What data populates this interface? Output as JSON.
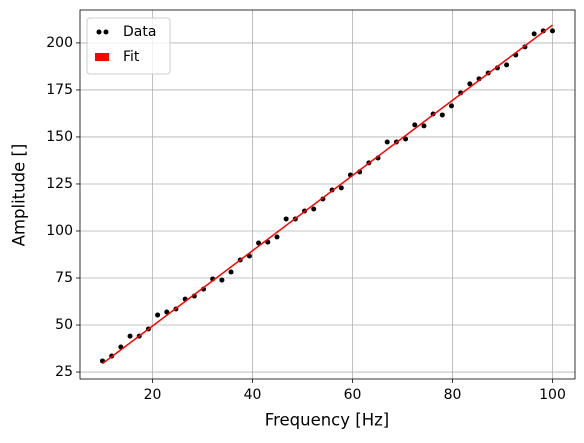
{
  "chart_data": {
    "type": "scatter",
    "xlabel": "Frequency [Hz]",
    "ylabel": "Amplitude []",
    "xlim": [
      5.5,
      104.5
    ],
    "ylim": [
      21.3,
      217.5
    ],
    "xticks": [
      20,
      40,
      60,
      80,
      100
    ],
    "yticks": [
      25,
      50,
      75,
      100,
      125,
      150,
      175,
      200
    ],
    "grid": true,
    "legend": "upper left",
    "series": [
      {
        "name": "Data",
        "type": "scatter",
        "color": "#000000",
        "x": [
          10,
          11.84,
          13.67,
          15.51,
          17.35,
          19.18,
          21.02,
          22.86,
          24.69,
          26.53,
          28.37,
          30.2,
          32.04,
          33.88,
          35.71,
          37.55,
          39.39,
          41.22,
          43.06,
          44.9,
          46.73,
          48.57,
          50.41,
          52.24,
          54.08,
          55.92,
          57.76,
          59.59,
          61.43,
          63.27,
          65.1,
          66.94,
          68.78,
          70.61,
          72.45,
          74.29,
          76.12,
          77.96,
          79.8,
          81.63,
          83.47,
          85.31,
          87.14,
          88.98,
          90.82,
          92.65,
          94.49,
          96.33,
          98.16,
          100
        ],
        "values": [
          30.9,
          33.5,
          38.3,
          44.1,
          44.1,
          47.9,
          55.3,
          56.9,
          58.5,
          63.8,
          65.4,
          69.1,
          74.5,
          73.9,
          78.2,
          84.6,
          86.7,
          93.6,
          94.1,
          96.8,
          106.4,
          106.4,
          110.6,
          111.7,
          117.0,
          121.8,
          122.9,
          129.8,
          131.4,
          136.2,
          138.8,
          147.3,
          147.3,
          148.9,
          156.4,
          155.9,
          162.2,
          161.7,
          166.5,
          173.4,
          178.2,
          180.9,
          184.0,
          186.7,
          188.3,
          193.6,
          197.9,
          204.8,
          206.4,
          206.4
        ]
      },
      {
        "name": "Fit",
        "type": "line",
        "color": "#ff0000",
        "x": [
          10,
          100
        ],
        "values": [
          29.5,
          209.5
        ]
      }
    ]
  }
}
